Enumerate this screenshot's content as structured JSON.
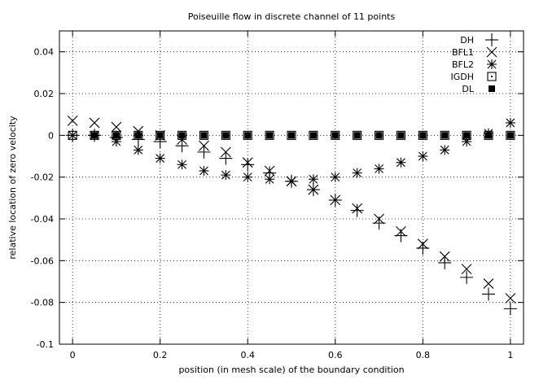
{
  "chart_data": {
    "type": "scatter",
    "title": "Poiseuille flow in discrete channel of 11 points",
    "xlabel": "position (in mesh scale) of the boundary condition",
    "ylabel": "relative location of zero velocity",
    "xlim": [
      -0.03,
      1.03
    ],
    "ylim": [
      -0.1,
      0.05
    ],
    "xticks": [
      0,
      0.2,
      0.4,
      0.6,
      0.8,
      1
    ],
    "xtick_labels": [
      "0",
      "0.2",
      "0.4",
      "0.6",
      "0.8",
      "1"
    ],
    "yticks": [
      -0.1,
      -0.08,
      -0.06,
      -0.04,
      -0.02,
      0,
      0.02,
      0.04
    ],
    "ytick_labels": [
      "-0.1",
      "-0.08",
      "-0.06",
      "-0.04",
      "-0.02",
      "0",
      "0.02",
      "0.04"
    ],
    "grid": true,
    "legend_position": "top-right",
    "series": [
      {
        "name": "DH",
        "marker": "plus",
        "points": [
          [
            0,
            0
          ],
          [
            0.05,
            0
          ],
          [
            0.1,
            -0.001
          ],
          [
            0.15,
            -0.002
          ],
          [
            0.2,
            -0.003
          ],
          [
            0.25,
            -0.005
          ],
          [
            0.3,
            -0.008
          ],
          [
            0.35,
            -0.011
          ],
          [
            0.4,
            -0.014
          ],
          [
            0.45,
            -0.018
          ],
          [
            0.5,
            -0.022
          ],
          [
            0.55,
            -0.026
          ],
          [
            0.6,
            -0.031
          ],
          [
            0.65,
            -0.036
          ],
          [
            0.7,
            -0.042
          ],
          [
            0.75,
            -0.048
          ],
          [
            0.8,
            -0.054
          ],
          [
            0.85,
            -0.061
          ],
          [
            0.9,
            -0.068
          ],
          [
            0.95,
            -0.076
          ],
          [
            1.0,
            -0.083
          ]
        ]
      },
      {
        "name": "BFL1",
        "marker": "x",
        "points": [
          [
            0,
            0.007
          ],
          [
            0.05,
            0.006
          ],
          [
            0.1,
            0.004
          ],
          [
            0.15,
            0.002
          ],
          [
            0.2,
            0
          ],
          [
            0.25,
            -0.002
          ],
          [
            0.3,
            -0.005
          ],
          [
            0.35,
            -0.008
          ],
          [
            0.4,
            -0.013
          ],
          [
            0.45,
            -0.017
          ],
          [
            0.5,
            -0.022
          ],
          [
            0.55,
            -0.026
          ],
          [
            0.6,
            -0.031
          ],
          [
            0.65,
            -0.035
          ],
          [
            0.7,
            -0.04
          ],
          [
            0.75,
            -0.046
          ],
          [
            0.8,
            -0.052
          ],
          [
            0.85,
            -0.058
          ],
          [
            0.9,
            -0.064
          ],
          [
            0.95,
            -0.071
          ],
          [
            1.0,
            -0.078
          ]
        ]
      },
      {
        "name": "BFL2",
        "marker": "star",
        "points": [
          [
            0,
            0
          ],
          [
            0.05,
            0
          ],
          [
            0.1,
            -0.003
          ],
          [
            0.15,
            -0.007
          ],
          [
            0.2,
            -0.011
          ],
          [
            0.25,
            -0.014
          ],
          [
            0.3,
            -0.017
          ],
          [
            0.35,
            -0.019
          ],
          [
            0.4,
            -0.02
          ],
          [
            0.45,
            -0.021
          ],
          [
            0.5,
            -0.022
          ],
          [
            0.55,
            -0.021
          ],
          [
            0.6,
            -0.02
          ],
          [
            0.65,
            -0.018
          ],
          [
            0.7,
            -0.016
          ],
          [
            0.75,
            -0.013
          ],
          [
            0.8,
            -0.01
          ],
          [
            0.85,
            -0.007
          ],
          [
            0.9,
            -0.003
          ],
          [
            0.95,
            0.001
          ],
          [
            1.0,
            0.006
          ]
        ]
      },
      {
        "name": "IGDH",
        "marker": "box-dot",
        "points": [
          [
            0,
            0
          ],
          [
            0.05,
            0
          ],
          [
            0.1,
            0
          ],
          [
            0.15,
            0
          ],
          [
            0.2,
            0
          ],
          [
            0.25,
            0
          ],
          [
            0.3,
            0
          ],
          [
            0.35,
            0
          ],
          [
            0.4,
            0
          ],
          [
            0.45,
            0
          ],
          [
            0.5,
            0
          ],
          [
            0.55,
            0
          ],
          [
            0.6,
            0
          ],
          [
            0.65,
            0
          ],
          [
            0.7,
            0
          ],
          [
            0.75,
            0
          ],
          [
            0.8,
            0
          ],
          [
            0.85,
            0
          ],
          [
            0.9,
            0
          ],
          [
            0.95,
            0
          ],
          [
            1.0,
            0
          ]
        ]
      },
      {
        "name": "DL",
        "marker": "filled-square",
        "points": [
          [
            0.05,
            0
          ],
          [
            0.1,
            0
          ],
          [
            0.15,
            0
          ],
          [
            0.2,
            0
          ],
          [
            0.25,
            0
          ],
          [
            0.3,
            0
          ],
          [
            0.35,
            0
          ],
          [
            0.4,
            0
          ],
          [
            0.45,
            0
          ],
          [
            0.5,
            0
          ],
          [
            0.55,
            0
          ],
          [
            0.6,
            0
          ],
          [
            0.65,
            0
          ],
          [
            0.7,
            0
          ],
          [
            0.75,
            0
          ],
          [
            0.8,
            0
          ],
          [
            0.85,
            0
          ],
          [
            0.9,
            0
          ],
          [
            0.95,
            0
          ],
          [
            1.0,
            0
          ]
        ]
      }
    ]
  }
}
